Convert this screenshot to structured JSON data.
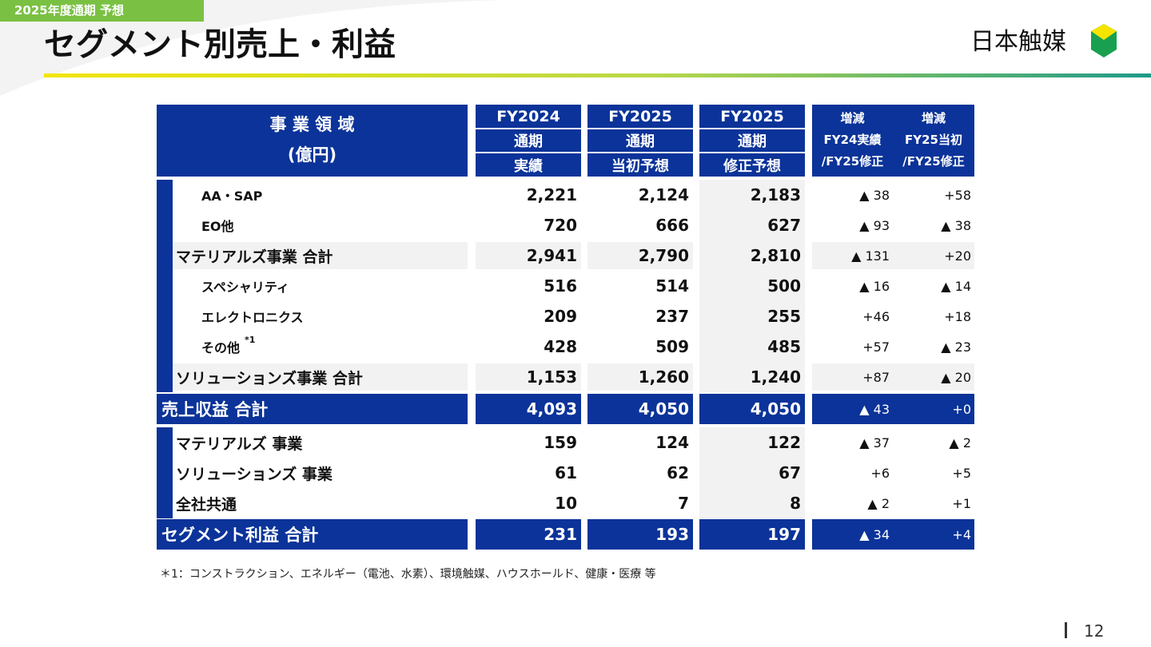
{
  "tag": "2025年度通期 予想",
  "title": "セグメント別売上・利益",
  "logo": "日本触媒",
  "table": {
    "header": {
      "label": [
        "事 業 領 域",
        "(億円)"
      ],
      "columns": [
        [
          "FY2024",
          "通期",
          "実績"
        ],
        [
          "FY2025",
          "通期",
          "当初予想"
        ],
        [
          "FY2025",
          "通期",
          "修正予想"
        ],
        [
          "増減",
          "FY24実績",
          "/FY25修正"
        ],
        [
          "増減",
          "FY25当初",
          "/FY25修正"
        ]
      ]
    },
    "rows": [
      {
        "style": "item",
        "label": "AA・SAP",
        "values": [
          "2,221",
          "2,124",
          "2,183",
          "▲ 38",
          "+58"
        ]
      },
      {
        "style": "item",
        "label": "EO他",
        "values": [
          "720",
          "666",
          "627",
          "▲ 93",
          "▲ 38"
        ]
      },
      {
        "style": "subtotal",
        "label": "マテリアルズ事業 合計",
        "values": [
          "2,941",
          "2,790",
          "2,810",
          "▲ 131",
          "+20"
        ]
      },
      {
        "style": "item",
        "label": "スペシャリティ",
        "values": [
          "516",
          "514",
          "500",
          "▲ 16",
          "▲ 14"
        ]
      },
      {
        "style": "item",
        "label": "エレクトロニクス",
        "values": [
          "209",
          "237",
          "255",
          "+46",
          "+18"
        ]
      },
      {
        "style": "item",
        "label": "その他",
        "note": "*1",
        "values": [
          "428",
          "509",
          "485",
          "+57",
          "▲ 23"
        ]
      },
      {
        "style": "subtotal",
        "label": "ソリューションズ事業 合計",
        "values": [
          "1,153",
          "1,260",
          "1,240",
          "+87",
          "▲ 20"
        ]
      },
      {
        "style": "total",
        "label": "売上収益 合計",
        "values": [
          "4,093",
          "4,050",
          "4,050",
          "▲ 43",
          "+0"
        ]
      },
      {
        "style": "profit",
        "label": "マテリアルズ 事業",
        "values": [
          "159",
          "124",
          "122",
          "▲ 37",
          "▲ 2"
        ]
      },
      {
        "style": "profit",
        "label": "ソリューションズ 事業",
        "values": [
          "61",
          "62",
          "67",
          "+6",
          "+5"
        ]
      },
      {
        "style": "profit",
        "label": "全社共通",
        "values": [
          "10",
          "7",
          "8",
          "▲ 2",
          "+1"
        ]
      },
      {
        "style": "total",
        "label": "セグメント利益 合計",
        "values": [
          "231",
          "193",
          "197",
          "▲ 34",
          "+4"
        ]
      }
    ]
  },
  "footnote": "＊1：コンストラクション、エネルギー（電池、水素）、環境触媒、ハウスホールド、健康・医療 等",
  "page_number": "12"
}
